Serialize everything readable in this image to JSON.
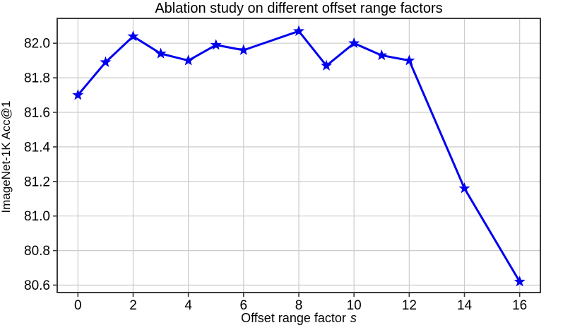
{
  "page": {
    "background": "#ffffff"
  },
  "chart_data": {
    "type": "line",
    "title": "Ablation study on different offset range factors",
    "xlabel": "Offset range factor",
    "xlabel_var": "s",
    "ylabel": "ImageNet-1K Acc@1",
    "x": [
      0,
      1,
      2,
      3,
      4,
      5,
      6,
      8,
      9,
      10,
      11,
      12,
      14,
      16
    ],
    "y": [
      81.7,
      81.89,
      82.04,
      81.94,
      81.9,
      81.99,
      81.96,
      82.07,
      81.87,
      82.0,
      81.93,
      81.9,
      81.16,
      80.62
    ],
    "x_ticks": [
      0,
      2,
      4,
      6,
      8,
      10,
      12,
      14,
      16
    ],
    "y_ticks": [
      80.6,
      80.8,
      81.0,
      81.2,
      81.4,
      81.6,
      81.8,
      82.0
    ],
    "xlim": [
      -0.75,
      16.75
    ],
    "ylim": [
      80.557,
      82.144
    ],
    "grid": true,
    "legend": "none",
    "marker": "star",
    "line_color": "#0000ee",
    "grid_color": "#cccccc",
    "spine_color": "#3a3a3a",
    "text_color": "#000000"
  }
}
